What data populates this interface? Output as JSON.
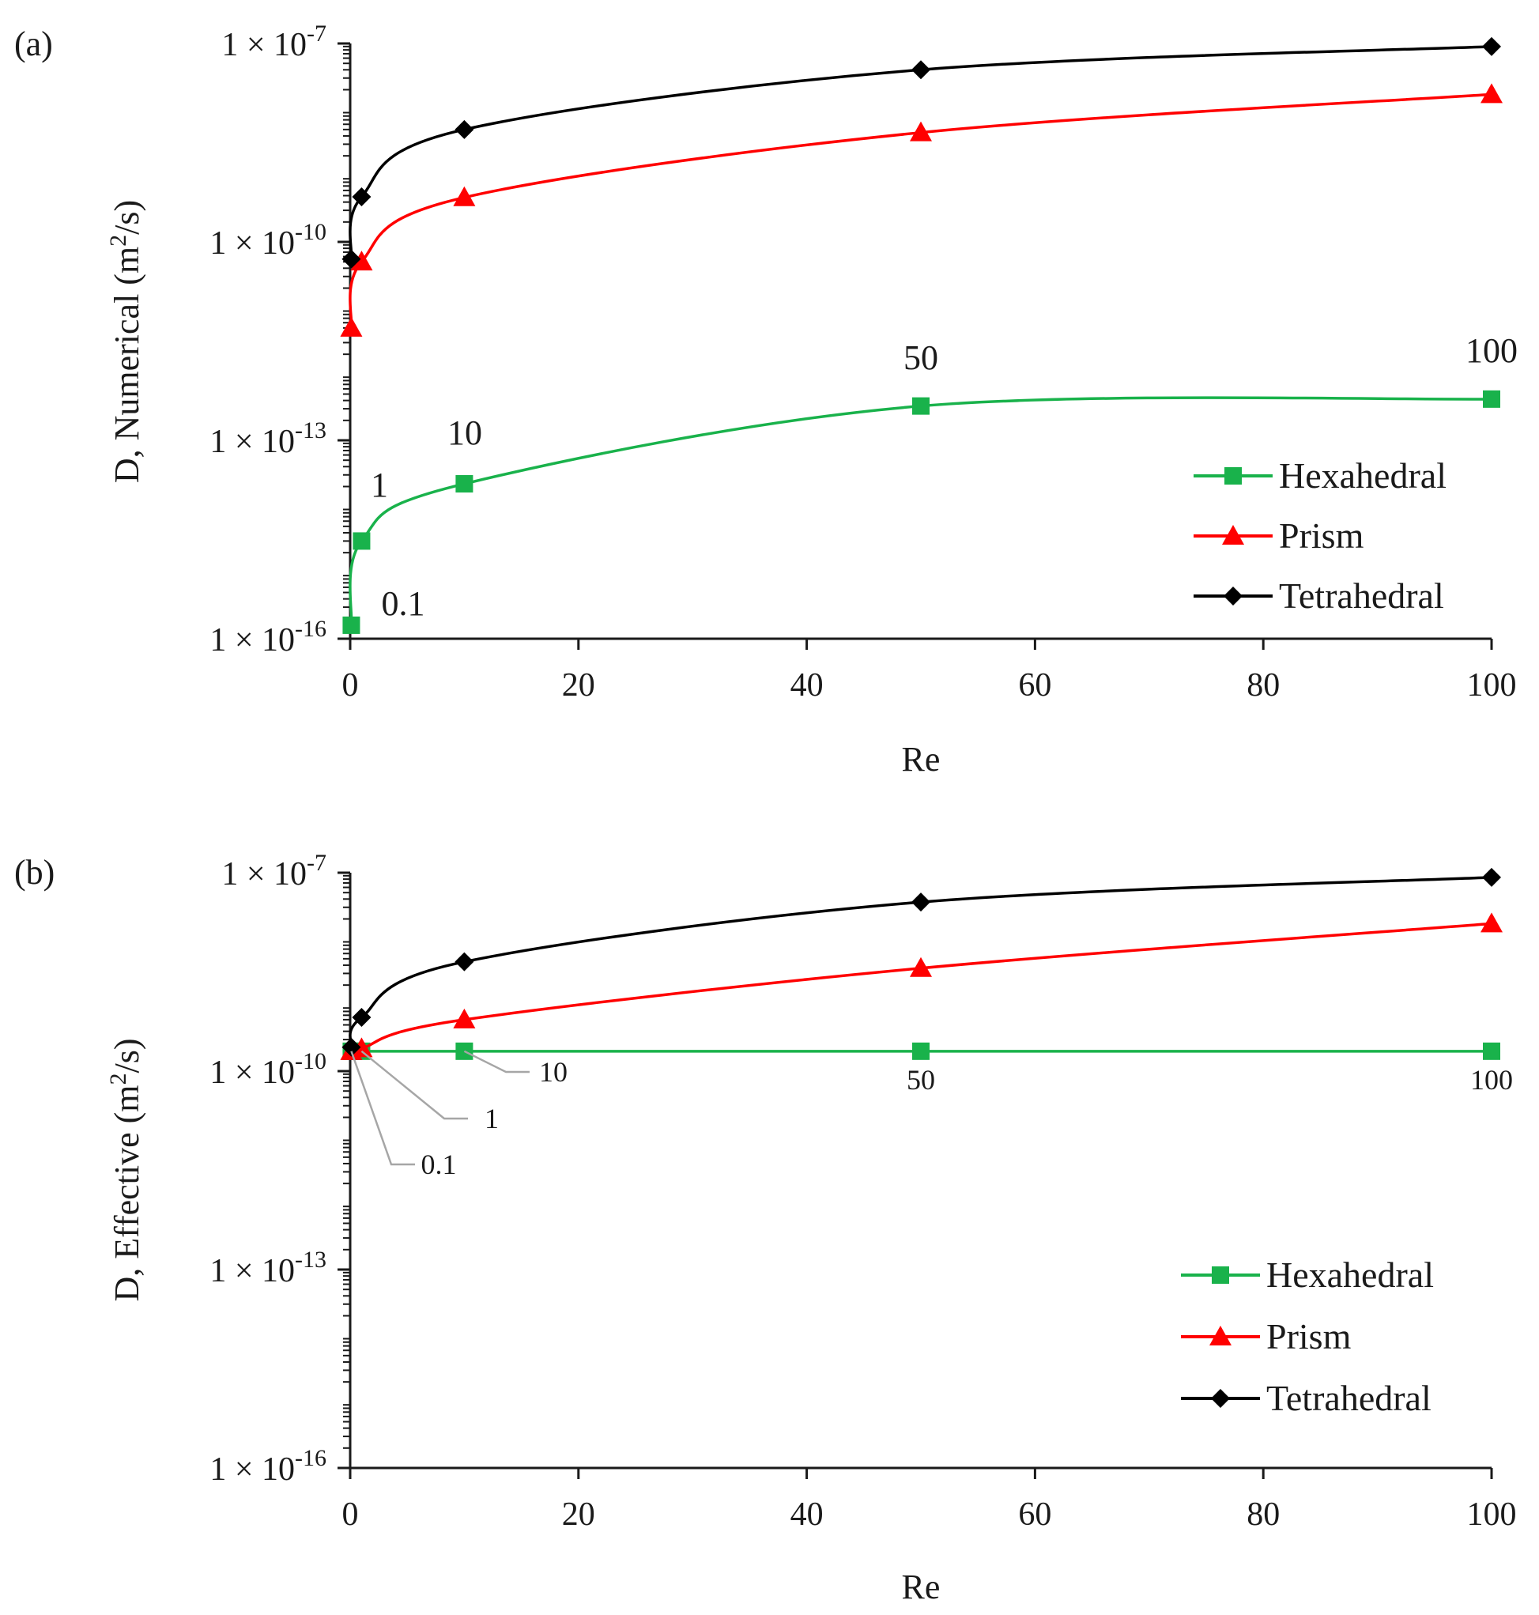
{
  "figure": {
    "panels": [
      "(a)",
      "(b)"
    ]
  },
  "chart_data": [
    {
      "type": "line",
      "panel_label": "(a)",
      "title": "",
      "xlabel": "Re",
      "ylabel": "D, Numerical (m²/s)",
      "ylabel_parts": {
        "main": "D, Numerical (m",
        "sup": "2",
        "tail": "/s)"
      },
      "xlim": [
        0,
        100
      ],
      "ylim_log10": [
        -16,
        -7
      ],
      "yscale": "log",
      "x_ticks": [
        0,
        20,
        40,
        60,
        80,
        100
      ],
      "x_tick_labels": [
        "0",
        "20",
        "40",
        "60",
        "80",
        "100"
      ],
      "y_ticks_log10": [
        -16,
        -13,
        -10,
        -7
      ],
      "y_tick_labels": [
        {
          "base": "1 × 10",
          "exp": "-16"
        },
        {
          "base": "1 × 10",
          "exp": "-13"
        },
        {
          "base": "1 × 10",
          "exp": "-10"
        },
        {
          "base": "1 × 10",
          "exp": "-7"
        }
      ],
      "x": [
        0.1,
        1,
        10,
        50,
        100
      ],
      "series": [
        {
          "name": "Hexahedral",
          "color": "#19b24b",
          "marker": "square",
          "values": [
            1.6e-16,
            3e-15,
            2.2e-14,
            3.3e-13,
            4.2e-13
          ]
        },
        {
          "name": "Prism",
          "color": "#ff0000",
          "marker": "triangle",
          "values": [
            5e-12,
            5e-11,
            4.7e-10,
            4.5e-09,
            1.7e-08
          ]
        },
        {
          "name": "Tetrahedral",
          "color": "#000000",
          "marker": "diamond",
          "values": [
            5.5e-11,
            4.8e-10,
            5e-09,
            4e-08,
            9e-08
          ]
        }
      ],
      "point_labels": [
        "0.1",
        "1",
        "10",
        "50",
        "100"
      ],
      "legend_position": "bottom-right"
    },
    {
      "type": "line",
      "panel_label": "(b)",
      "title": "",
      "xlabel": "Re",
      "ylabel": "D, Effective (m²/s)",
      "ylabel_parts": {
        "main": "D, Effective (m",
        "sup": "2",
        "tail": "/s)"
      },
      "xlim": [
        0,
        100
      ],
      "ylim_log10": [
        -16,
        -7
      ],
      "yscale": "log",
      "x_ticks": [
        0,
        20,
        40,
        60,
        80,
        100
      ],
      "x_tick_labels": [
        "0",
        "20",
        "40",
        "60",
        "80",
        "100"
      ],
      "y_ticks_log10": [
        -16,
        -13,
        -10,
        -7
      ],
      "y_tick_labels": [
        {
          "base": "1 × 10",
          "exp": "-16"
        },
        {
          "base": "1 × 10",
          "exp": "-13"
        },
        {
          "base": "1 × 10",
          "exp": "-10"
        },
        {
          "base": "1 × 10",
          "exp": "-7"
        }
      ],
      "x": [
        0.1,
        1,
        10,
        50,
        100
      ],
      "series": [
        {
          "name": "Hexahedral",
          "color": "#19b24b",
          "marker": "square",
          "values": [
            2e-10,
            2e-10,
            2e-10,
            2e-10,
            2e-10
          ]
        },
        {
          "name": "Prism",
          "color": "#ff0000",
          "marker": "triangle",
          "values": [
            2e-10,
            2.2e-10,
            6e-10,
            3.6e-09,
            1.7e-08
          ]
        },
        {
          "name": "Tetrahedral",
          "color": "#000000",
          "marker": "diamond",
          "values": [
            2.3e-10,
            6.5e-10,
            4.5e-09,
            3.6e-08,
            8.5e-08
          ]
        }
      ],
      "point_labels": [
        "0.1",
        "1",
        "10",
        "50",
        "100"
      ],
      "legend_position": "right"
    }
  ]
}
